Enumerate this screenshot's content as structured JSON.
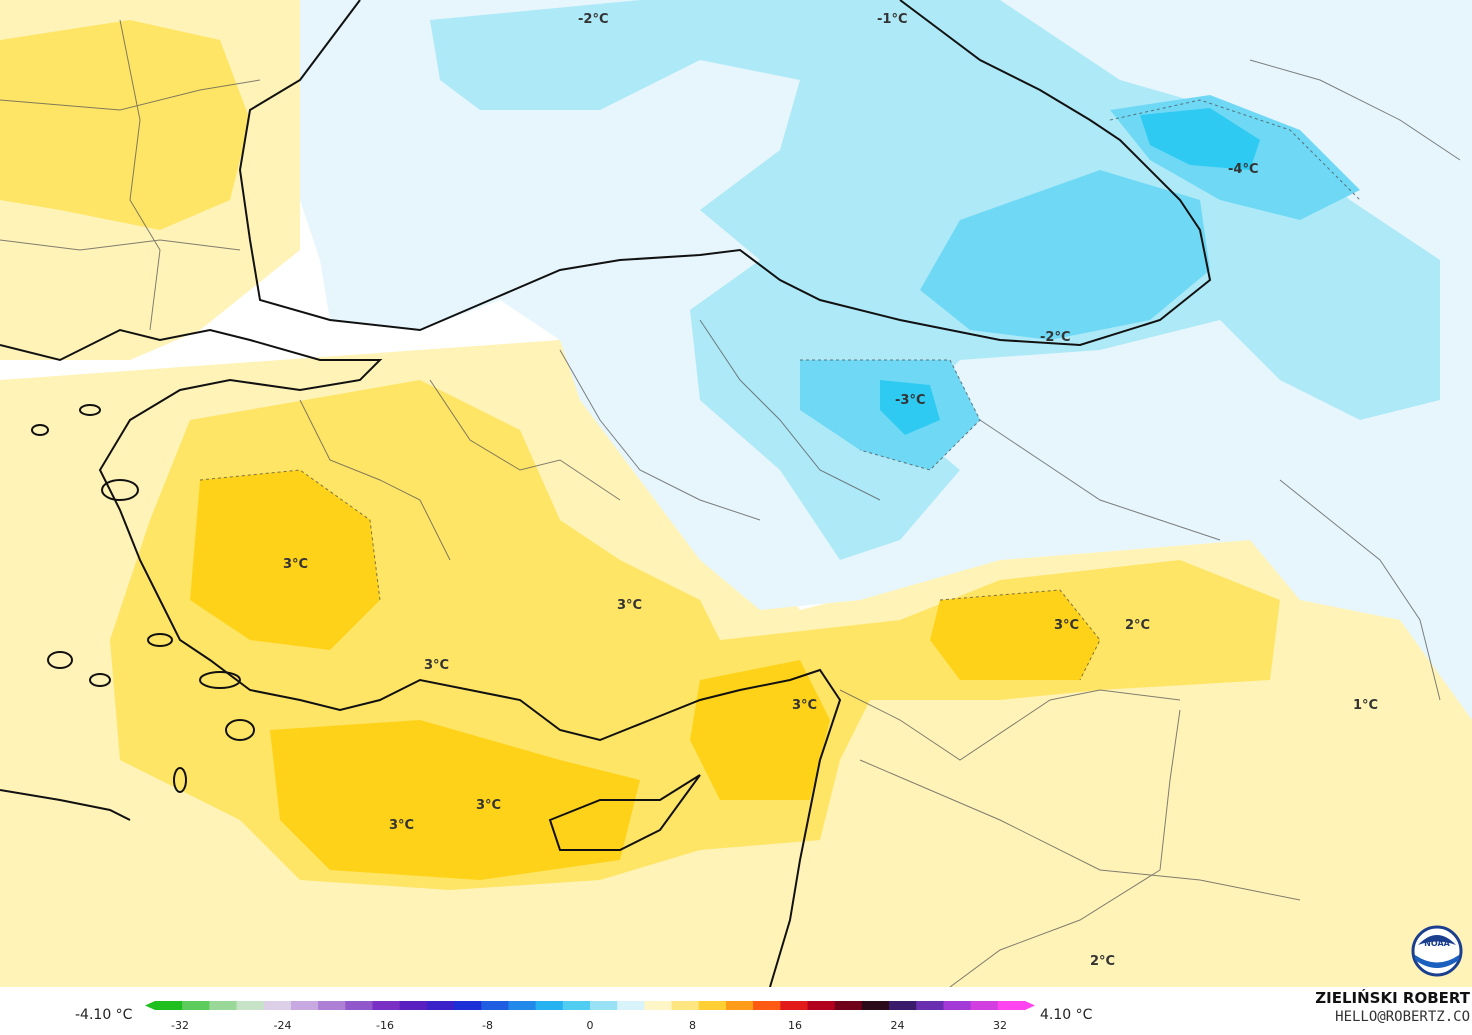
{
  "map": {
    "labels": [
      {
        "id": "black-sea-west",
        "text": "-2°C"
      },
      {
        "id": "black-sea-north",
        "text": "-1°C"
      },
      {
        "id": "caucasus",
        "text": "-4°C"
      },
      {
        "id": "black-sea-east-coast",
        "text": "-2°C"
      },
      {
        "id": "anatolia-northeast",
        "text": "-3°C"
      },
      {
        "id": "aegean-inland",
        "text": "3°C"
      },
      {
        "id": "central-anatolia",
        "text": "3°C"
      },
      {
        "id": "southwest-anatolia",
        "text": "3°C"
      },
      {
        "id": "southeast-anatolia-1",
        "text": "3°C"
      },
      {
        "id": "southeast-anatolia-2",
        "text": "2°C"
      },
      {
        "id": "hatay",
        "text": "3°C"
      },
      {
        "id": "iran-west",
        "text": "1°C"
      },
      {
        "id": "mediterranean-south",
        "text": "3°C"
      },
      {
        "id": "mediterranean-east",
        "text": "3°C"
      },
      {
        "id": "syria-desert",
        "text": "2°C"
      }
    ],
    "colors": {
      "land_neutral": "#ffffff",
      "warm_1": "#fff3b8",
      "warm_2": "#ffe566",
      "warm_3": "#ffd21a",
      "cold_1": "#e6f6fc",
      "cold_2": "#aee9f8",
      "cold_3": "#6fd9f5",
      "cold_4": "#2fcaf2"
    },
    "logo_icon": "noaa-logo-icon"
  },
  "legend": {
    "min_label": "-4.10 °C",
    "max_label": "4.10 °C",
    "ticks": [
      "-32",
      "-24",
      "-16",
      "-8",
      "0",
      "8",
      "16",
      "24",
      "32"
    ],
    "colorbar": [
      "#1fbf1f",
      "#5ccc5c",
      "#9ad89a",
      "#c7e3c7",
      "#dcd0e8",
      "#c8a8e0",
      "#ad80d6",
      "#9158cc",
      "#7a30c4",
      "#5a1fc0",
      "#3a22c8",
      "#1d2fd6",
      "#1f5ee0",
      "#2288ea",
      "#26b2f0",
      "#52cdf2",
      "#99e2f5",
      "#d8f3fa",
      "#fff6c8",
      "#ffe680",
      "#ffcf33",
      "#ff9c1a",
      "#ff5a14",
      "#e31a1a",
      "#b3001f",
      "#70001a",
      "#2b0a1a",
      "#3a1b6b",
      "#6a2fb0",
      "#a339d6",
      "#d23fe0",
      "#ff44f0"
    ]
  },
  "credit": {
    "name": "ZIELIŃSKI ROBERT",
    "email": "HELLO@ROBERTZ.CO"
  }
}
